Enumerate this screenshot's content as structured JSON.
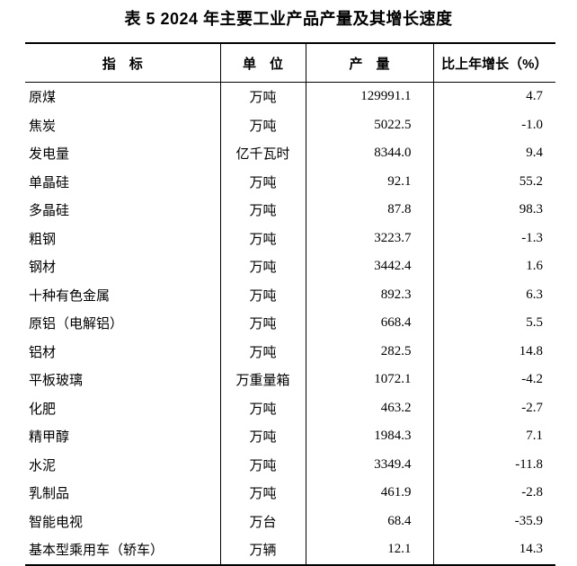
{
  "page": {
    "title": "表 5  2024 年主要工业产品产量及其增长速度"
  },
  "table": {
    "headers": {
      "indicator": "指　标",
      "unit": "单　位",
      "output": "产　量",
      "growth": "比上年增长（%）"
    },
    "rows": [
      {
        "indicator": "原煤",
        "unit": "万吨",
        "output": "129991.1",
        "growth": "4.7"
      },
      {
        "indicator": "焦炭",
        "unit": "万吨",
        "output": "5022.5",
        "growth": "-1.0"
      },
      {
        "indicator": "发电量",
        "unit": "亿千瓦时",
        "output": "8344.0",
        "growth": "9.4"
      },
      {
        "indicator": "单晶硅",
        "unit": "万吨",
        "output": "92.1",
        "growth": "55.2"
      },
      {
        "indicator": "多晶硅",
        "unit": "万吨",
        "output": "87.8",
        "growth": "98.3"
      },
      {
        "indicator": "粗钢",
        "unit": "万吨",
        "output": "3223.7",
        "growth": "-1.3"
      },
      {
        "indicator": "钢材",
        "unit": "万吨",
        "output": "3442.4",
        "growth": "1.6"
      },
      {
        "indicator": "十种有色金属",
        "unit": "万吨",
        "output": "892.3",
        "growth": "6.3"
      },
      {
        "indicator": "原铝（电解铝）",
        "unit": "万吨",
        "output": "668.4",
        "growth": "5.5"
      },
      {
        "indicator": "铝材",
        "unit": "万吨",
        "output": "282.5",
        "growth": "14.8"
      },
      {
        "indicator": "平板玻璃",
        "unit": "万重量箱",
        "output": "1072.1",
        "growth": "-4.2"
      },
      {
        "indicator": "化肥",
        "unit": "万吨",
        "output": "463.2",
        "growth": "-2.7"
      },
      {
        "indicator": "精甲醇",
        "unit": "万吨",
        "output": "1984.3",
        "growth": "7.1"
      },
      {
        "indicator": "水泥",
        "unit": "万吨",
        "output": "3349.4",
        "growth": "-11.8"
      },
      {
        "indicator": "乳制品",
        "unit": "万吨",
        "output": "461.9",
        "growth": "-2.8"
      },
      {
        "indicator": "智能电视",
        "unit": "万台",
        "output": "68.4",
        "growth": "-35.9"
      },
      {
        "indicator": "基本型乘用车（轿车）",
        "unit": "万辆",
        "output": "12.1",
        "growth": "14.3"
      }
    ]
  }
}
